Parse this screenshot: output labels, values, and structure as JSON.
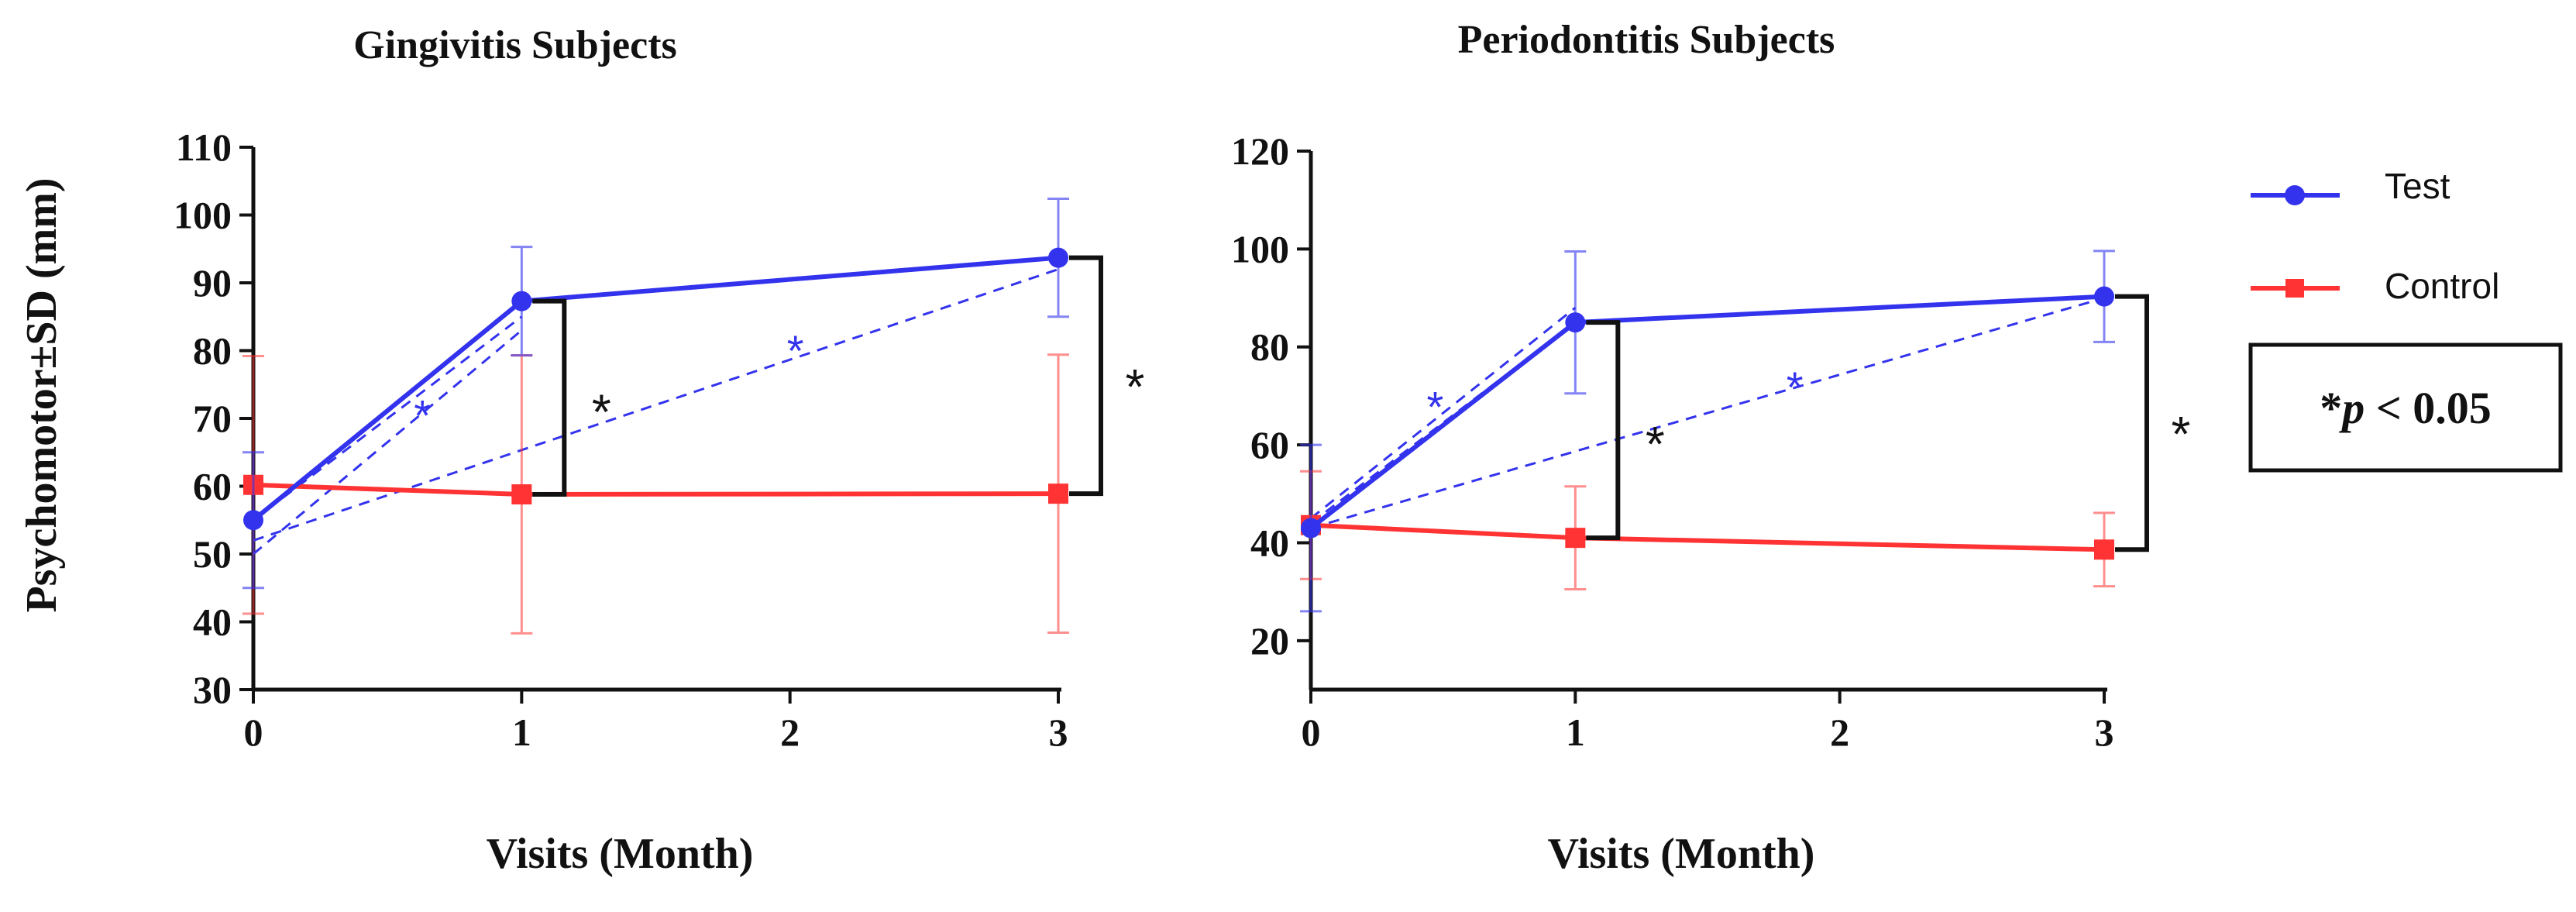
{
  "colors": {
    "test": "#3333ee",
    "control": "#ff3333",
    "axis": "#111111"
  },
  "chart_data": [
    {
      "type": "line",
      "title": "Gingivitis Subjects",
      "xlabel": "Visits (Month)",
      "ylabel": "Psychomotor±SD (mm)",
      "xlim": [
        0,
        3
      ],
      "ylim": [
        30,
        110
      ],
      "xticks": [
        0,
        1,
        2,
        3
      ],
      "yticks": [
        30,
        40,
        50,
        60,
        70,
        80,
        90,
        100,
        110
      ],
      "series": [
        {
          "name": "Test",
          "marker": "circle",
          "x": [
            0,
            1,
            3
          ],
          "values": [
            55,
            87.3,
            93.7
          ],
          "sd": [
            10,
            8,
            8.7
          ]
        },
        {
          "name": "Control",
          "marker": "square",
          "x": [
            0,
            1,
            3
          ],
          "values": [
            60.2,
            58.8,
            58.9
          ],
          "sd": [
            19,
            20.5,
            20.5
          ]
        }
      ],
      "trend_lines": [
        {
          "from": [
            0,
            55
          ],
          "to": [
            1,
            85
          ]
        },
        {
          "from": [
            0,
            52
          ],
          "to": [
            3,
            92
          ]
        },
        {
          "from": [
            0,
            50
          ],
          "to": [
            1,
            83
          ]
        }
      ],
      "trend_stars": [
        {
          "x": 0.63,
          "y": 71,
          "label": "*"
        },
        {
          "x": 2.02,
          "y": 80.5,
          "label": "*"
        }
      ],
      "brackets": [
        {
          "x": 1,
          "y_top": 87.3,
          "y_bottom": 58.8,
          "label": "*"
        },
        {
          "x": 3,
          "y_top": 93.7,
          "y_bottom": 58.9,
          "label": "*"
        }
      ]
    },
    {
      "type": "line",
      "title": "Periodontitis Subjects",
      "xlabel": "Visits (Month)",
      "ylabel": "",
      "xlim": [
        0,
        3
      ],
      "ylim": [
        10,
        120
      ],
      "xticks": [
        0,
        1,
        2,
        3
      ],
      "yticks": [
        20,
        40,
        60,
        80,
        100,
        120
      ],
      "series": [
        {
          "name": "Test",
          "marker": "circle",
          "x": [
            0,
            1,
            3
          ],
          "values": [
            43,
            85,
            90.3
          ],
          "sd": [
            17,
            14.5,
            9.3
          ]
        },
        {
          "name": "Control",
          "marker": "square",
          "x": [
            0,
            1,
            3
          ],
          "values": [
            43.6,
            41,
            38.6
          ],
          "sd": [
            11,
            10.5,
            7.5
          ]
        }
      ],
      "trend_lines": [
        {
          "from": [
            0,
            45
          ],
          "to": [
            1,
            88
          ]
        },
        {
          "from": [
            0,
            43
          ],
          "to": [
            3,
            90
          ]
        },
        {
          "from": [
            0,
            44
          ],
          "to": [
            1,
            85
          ]
        }
      ],
      "trend_stars": [
        {
          "x": 0.47,
          "y": 68.5,
          "label": "*"
        },
        {
          "x": 1.83,
          "y": 72.5,
          "label": "*"
        }
      ],
      "brackets": [
        {
          "x": 1,
          "y_top": 85,
          "y_bottom": 41,
          "label": "*"
        },
        {
          "x": 3,
          "y_top": 90.3,
          "y_bottom": 38.6,
          "label": "*"
        }
      ]
    }
  ],
  "legend": {
    "items": [
      {
        "label": "Test",
        "series": "test"
      },
      {
        "label": "Control",
        "series": "control"
      }
    ],
    "significance_prefix": "*",
    "significance_var": "p",
    "significance_rest": " < 0.05"
  }
}
